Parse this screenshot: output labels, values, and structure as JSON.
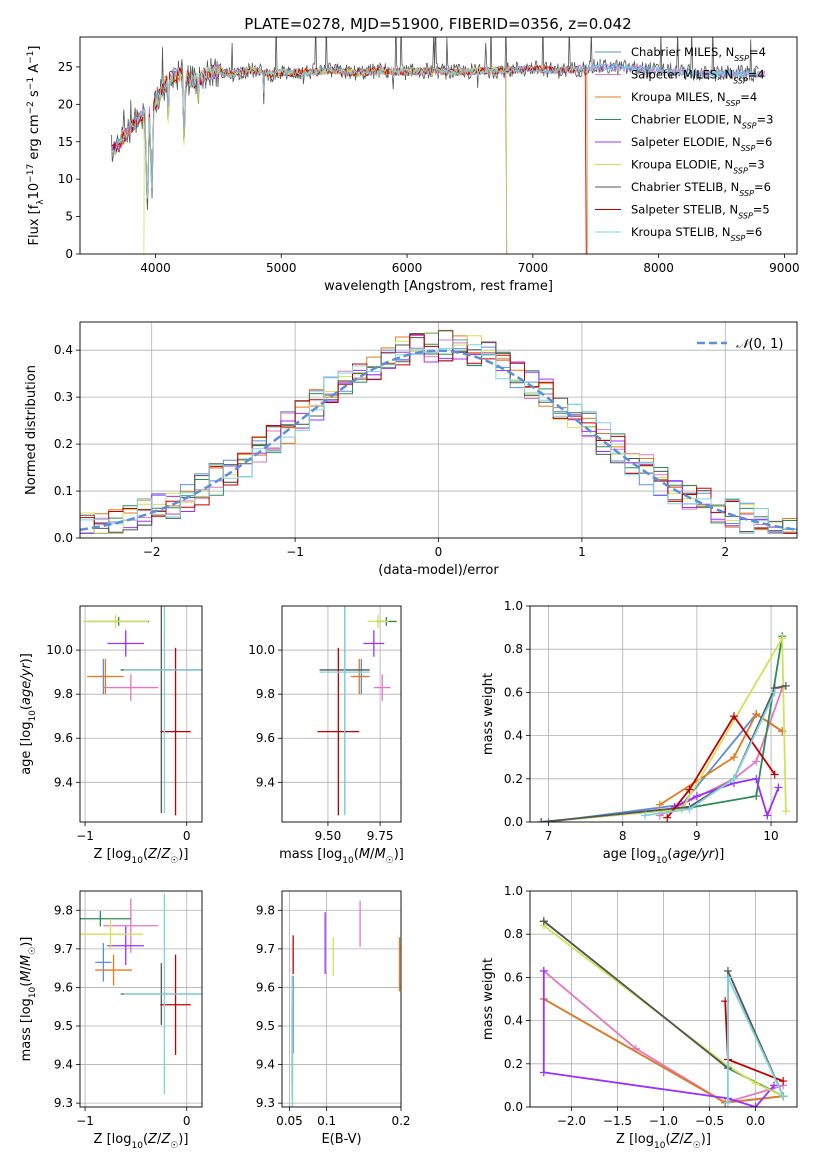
{
  "title": "PLATE=0278, MJD=51900, FIBERID=0356, z=0.042",
  "colors": [
    "#5b8fd9",
    "#e377c2",
    "#e07b20",
    "#2e8b57",
    "#9b30ff",
    "#d4e157",
    "#555555",
    "#c00000",
    "#7fd3e0"
  ],
  "legend_entries": [
    "Chabrier MILES, N_SSP=4",
    "Salpeter MILES, N_SSP=4",
    "Kroupa MILES, N_SSP=4",
    "Chabrier ELODIE, N_SSP=3",
    "Salpeter ELODIE, N_SSP=6",
    "Kroupa ELODIE, N_SSP=3",
    "Chabrier STELIB, N_SSP=6",
    "Salpeter STELIB, N_SSP=5",
    "Kroupa STELIB, N_SSP=6"
  ],
  "chart_data": [
    {
      "id": "spectrum",
      "type": "line",
      "xlabel": "wavelength [Angstrom, rest frame]",
      "ylabel": "Flux [f_λ 10^-17 erg cm^-2 s^-1 A^-1]",
      "xlim": [
        3400,
        9100
      ],
      "ylim": [
        0,
        29
      ],
      "xticks": [
        4000,
        5000,
        6000,
        7000,
        8000,
        9000
      ],
      "yticks": [
        0,
        5,
        10,
        15,
        20,
        25
      ],
      "grid": false,
      "legend": "top-right",
      "spectrum_shape": {
        "x": [
          3650,
          3700,
          3800,
          3900,
          3950,
          4000,
          4050,
          4100,
          4200,
          4300,
          4400,
          4500,
          4600,
          4700,
          4800,
          4900,
          5000,
          5200,
          5400,
          5600,
          5800,
          6000,
          6200,
          6400,
          6600,
          6800,
          7000,
          7200,
          7400,
          7500,
          7600,
          7800,
          8000,
          8200,
          8400,
          8600,
          8800
        ],
        "y": [
          14,
          14.5,
          17,
          18.5,
          19,
          20,
          22,
          23.5,
          24,
          23,
          24,
          24.5,
          24,
          24.5,
          24.5,
          24,
          24.2,
          24.3,
          24.5,
          24.2,
          24.5,
          24.3,
          24.5,
          24.3,
          24.5,
          24.6,
          24.8,
          24.5,
          24.8,
          25,
          25,
          24.8,
          24.5,
          24.3,
          24,
          24.2,
          24
        ]
      },
      "dips": [
        {
          "x": 3935,
          "y": 4.5
        },
        {
          "x": 3970,
          "y": 6
        },
        {
          "x": 4101,
          "y": 16
        },
        {
          "x": 4227,
          "y": 13
        },
        {
          "x": 4340,
          "y": 18
        },
        {
          "x": 4861,
          "y": 20
        },
        {
          "x": 5175,
          "y": 22
        },
        {
          "x": 5890,
          "y": 22
        },
        {
          "x": 6563,
          "y": 21.5
        }
      ],
      "series_ends": [
        {
          "series": 5,
          "x_start": 3910,
          "drop_at": null
        },
        {
          "series": 5,
          "x_end": 6790,
          "note": ""
        },
        {
          "series": 2,
          "x_end": 7430
        }
      ]
    },
    {
      "id": "residuals",
      "type": "histogram",
      "xlabel": "(data-model)/error",
      "ylabel": "Normed distribution",
      "xlim": [
        -2.5,
        2.5
      ],
      "ylim": [
        0,
        0.46
      ],
      "xticks": [
        -2,
        -1,
        0,
        1,
        2
      ],
      "yticks": [
        0.0,
        0.1,
        0.2,
        0.3,
        0.4
      ],
      "grid": true,
      "legend": "top-right",
      "legend_label": "N(0,1)",
      "bin_width": 0.1
    },
    {
      "id": "age_vs_Z",
      "type": "errorbar",
      "xlabel": "Z [log10(Z/Z☉)]",
      "ylabel": "age [log10(age/yr)]",
      "xlim": [
        -1.05,
        0.15
      ],
      "ylim": [
        9.22,
        10.2
      ],
      "xticks": [
        -1,
        0
      ],
      "yticks": [
        9.4,
        9.6,
        9.8,
        10.0
      ],
      "points": [
        {
          "c": 0,
          "x": -0.82,
          "y": 9.88,
          "ex": 0.08,
          "ey": 0.08
        },
        {
          "c": 1,
          "x": -0.55,
          "y": 9.83,
          "ex": 0.27,
          "ey": 0.06
        },
        {
          "c": 2,
          "x": -0.8,
          "y": 9.88,
          "ex": 0.18,
          "ey": 0.08
        },
        {
          "c": 3,
          "x": -0.67,
          "y": 10.13,
          "ex": 0.3,
          "ey": 0.02
        },
        {
          "c": 4,
          "x": -0.6,
          "y": 10.03,
          "ex": 0.18,
          "ey": 0.06
        },
        {
          "c": 5,
          "x": -0.7,
          "y": 10.13,
          "ex": 0.32,
          "ey": 0.03
        },
        {
          "c": 6,
          "x": -0.25,
          "y": 9.91,
          "ex": 0.4,
          "ey": 0.65
        },
        {
          "c": 7,
          "x": -0.11,
          "y": 9.63,
          "ex": 0.15,
          "ey": 0.38
        },
        {
          "c": 8,
          "x": -0.22,
          "y": 9.91,
          "ex": 0.4,
          "ey": 0.65
        }
      ]
    },
    {
      "id": "age_vs_mass",
      "type": "errorbar",
      "xlabel": "mass [log10(M/M☉)]",
      "ylabel": "",
      "xlim": [
        9.28,
        9.85
      ],
      "ylim": [
        9.22,
        10.2
      ],
      "xticks": [
        9.5,
        9.75
      ],
      "xticklabels": [
        "9.50",
        "9.75"
      ],
      "yticks": [
        9.4,
        9.6,
        9.8,
        10.0
      ],
      "points": [
        {
          "c": 0,
          "x": 9.66,
          "y": 9.88,
          "ex": 0.04,
          "ey": 0.08
        },
        {
          "c": 1,
          "x": 9.76,
          "y": 9.83,
          "ex": 0.04,
          "ey": 0.06
        },
        {
          "c": 2,
          "x": 9.65,
          "y": 9.88,
          "ex": 0.04,
          "ey": 0.08
        },
        {
          "c": 3,
          "x": 9.78,
          "y": 10.13,
          "ex": 0.05,
          "ey": 0.02
        },
        {
          "c": 4,
          "x": 9.72,
          "y": 10.03,
          "ex": 0.05,
          "ey": 0.06
        },
        {
          "c": 5,
          "x": 9.74,
          "y": 10.13,
          "ex": 0.05,
          "ey": 0.03
        },
        {
          "c": 6,
          "x": 9.58,
          "y": 9.91,
          "ex": 0.12,
          "ey": 0.65
        },
        {
          "c": 7,
          "x": 9.55,
          "y": 9.63,
          "ex": 0.1,
          "ey": 0.38
        },
        {
          "c": 8,
          "x": 9.58,
          "y": 9.9,
          "ex": 0.12,
          "ey": 0.65
        }
      ]
    },
    {
      "id": "weight_vs_age",
      "type": "line",
      "xlabel": "age [log10(age/yr)]",
      "ylabel": "mass weight",
      "xlim": [
        6.75,
        10.35
      ],
      "ylim": [
        0,
        1.0
      ],
      "xticks": [
        7,
        8,
        9,
        10
      ],
      "yticks": [
        0.0,
        0.2,
        0.4,
        0.6,
        0.8,
        1.0
      ],
      "grid": true,
      "series": [
        {
          "c": 0,
          "x": [
            7.0,
            8.8,
            9.8,
            10.15
          ],
          "y": [
            0.0,
            0.08,
            0.5,
            0.42
          ]
        },
        {
          "c": 1,
          "x": [
            8.5,
            9.5,
            9.8,
            10.15
          ],
          "y": [
            0.03,
            0.2,
            0.28,
            0.62
          ]
        },
        {
          "c": 2,
          "x": [
            8.5,
            9.5,
            9.8,
            10.15
          ],
          "y": [
            0.08,
            0.3,
            0.5,
            0.42
          ]
        },
        {
          "c": 3,
          "x": [
            6.9,
            8.8,
            9.8,
            10.15
          ],
          "y": [
            0.0,
            0.06,
            0.12,
            0.86
          ]
        },
        {
          "c": 4,
          "x": [
            8.7,
            9.0,
            9.5,
            9.8,
            9.95,
            10.1
          ],
          "y": [
            0.07,
            0.12,
            0.18,
            0.2,
            0.03,
            0.16
          ]
        },
        {
          "c": 5,
          "x": [
            6.9,
            8.8,
            10.15,
            10.2
          ],
          "y": [
            0.0,
            0.06,
            0.85,
            0.05
          ]
        },
        {
          "c": 6,
          "x": [
            6.9,
            8.9,
            9.5,
            10.05,
            10.2
          ],
          "y": [
            0.0,
            0.07,
            0.2,
            0.62,
            0.63
          ]
        },
        {
          "c": 7,
          "x": [
            8.6,
            8.9,
            9.5,
            10.05
          ],
          "y": [
            0.02,
            0.15,
            0.49,
            0.22
          ]
        },
        {
          "c": 8,
          "x": [
            8.3,
            8.9,
            9.5,
            10.05
          ],
          "y": [
            0.03,
            0.06,
            0.2,
            0.6
          ]
        }
      ]
    },
    {
      "id": "mass_vs_Z",
      "type": "errorbar",
      "xlabel": "Z [log10(Z/Z☉)]",
      "ylabel": "mass [log10(M/M☉)]",
      "xlim": [
        -1.05,
        0.15
      ],
      "ylim": [
        9.29,
        9.85
      ],
      "xticks": [
        -1,
        0
      ],
      "yticks": [
        9.3,
        9.4,
        9.5,
        9.6,
        9.7,
        9.8
      ],
      "points": [
        {
          "c": 0,
          "x": -0.82,
          "y": 9.665,
          "ex": 0.08,
          "ey": 0.05
        },
        {
          "c": 1,
          "x": -0.55,
          "y": 9.76,
          "ex": 0.27,
          "ey": 0.07
        },
        {
          "c": 2,
          "x": -0.72,
          "y": 9.645,
          "ex": 0.18,
          "ey": 0.04
        },
        {
          "c": 3,
          "x": -0.85,
          "y": 9.778,
          "ex": 0.3,
          "ey": 0.02
        },
        {
          "c": 4,
          "x": -0.6,
          "y": 9.708,
          "ex": 0.18,
          "ey": 0.05
        },
        {
          "c": 5,
          "x": -0.75,
          "y": 9.738,
          "ex": 0.32,
          "ey": 0.04
        },
        {
          "c": 6,
          "x": -0.25,
          "y": 9.583,
          "ex": 0.4,
          "ey": 0.08
        },
        {
          "c": 7,
          "x": -0.11,
          "y": 9.555,
          "ex": 0.15,
          "ey": 0.13
        },
        {
          "c": 8,
          "x": -0.22,
          "y": 9.583,
          "ex": 0.4,
          "ey": 0.26
        }
      ]
    },
    {
      "id": "mass_vs_ebv",
      "type": "errorbar",
      "xlabel": "E(B-V)",
      "ylabel": "",
      "xlim": [
        0.04,
        0.2
      ],
      "ylim": [
        9.29,
        9.85
      ],
      "xticks": [
        0.05,
        0.1,
        0.2
      ],
      "yticks": [
        9.3,
        9.4,
        9.5,
        9.6,
        9.7,
        9.8
      ],
      "points": [
        {
          "c": 0,
          "x": 0.055,
          "y": 9.53,
          "ey": 0.1
        },
        {
          "c": 1,
          "x": 0.145,
          "y": 9.765,
          "ey": 0.06
        },
        {
          "c": 2,
          "x": 0.198,
          "y": 9.66,
          "ey": 0.07
        },
        {
          "c": 3,
          "x": 0.054,
          "y": 9.45,
          "ey": 0.1
        },
        {
          "c": 4,
          "x": 0.098,
          "y": 9.715,
          "ey": 0.08
        },
        {
          "c": 5,
          "x": 0.109,
          "y": 9.68,
          "ey": 0.05
        },
        {
          "c": 6,
          "x": 0.054,
          "y": 9.47,
          "ey": 0.16
        },
        {
          "c": 7,
          "x": 0.055,
          "y": 9.685,
          "ey": 0.05
        },
        {
          "c": 8,
          "x": 0.054,
          "y": 9.43,
          "ey": 0.2
        }
      ]
    },
    {
      "id": "weight_vs_Z",
      "type": "line",
      "xlabel": "Z [log10(Z/Z☉)]",
      "ylabel": "mass weight",
      "xlim": [
        -2.45,
        0.45
      ],
      "ylim": [
        0,
        1.0
      ],
      "xticks": [
        -2.0,
        -1.5,
        -1.0,
        -0.5,
        0.0
      ],
      "xticklabels": [
        "−2.0",
        "−1.5",
        "−1.0",
        "−0.5",
        "0.0"
      ],
      "yticks": [
        0.0,
        0.2,
        0.4,
        0.6,
        0.8,
        1.0
      ],
      "grid": true,
      "series": [
        {
          "c": 0,
          "x": [
            -2.3,
            -0.33,
            0.3
          ],
          "y": [
            0.5,
            0.02,
            0.05
          ]
        },
        {
          "c": 1,
          "x": [
            -2.3,
            -1.3,
            -0.33,
            0.3
          ],
          "y": [
            0.63,
            0.27,
            0.02,
            0.1
          ]
        },
        {
          "c": 2,
          "x": [
            -2.3,
            -0.33,
            0.3
          ],
          "y": [
            0.5,
            0.02,
            0.05
          ]
        },
        {
          "c": 3,
          "x": [
            -2.3,
            -0.3,
            0.3
          ],
          "y": [
            0.86,
            0.18,
            0.05
          ]
        },
        {
          "c": 4,
          "x": [
            -2.3,
            -2.3,
            -0.3,
            0.0,
            0.2
          ],
          "y": [
            0.63,
            0.16,
            0.04,
            0.0,
            0.1
          ]
        },
        {
          "c": 5,
          "x": [
            -2.3,
            -0.3,
            0.0,
            0.3
          ],
          "y": [
            0.84,
            0.19,
            0.11,
            0.05
          ]
        },
        {
          "c": 6,
          "x": [
            -2.3,
            -0.3,
            -0.3,
            0.3
          ],
          "y": [
            0.86,
            0.18,
            0.63,
            0.05
          ]
        },
        {
          "c": 7,
          "x": [
            -0.33,
            -0.3,
            0.3
          ],
          "y": [
            0.49,
            0.22,
            0.12
          ]
        },
        {
          "c": 8,
          "x": [
            -0.3,
            -0.3,
            0.3
          ],
          "y": [
            0.02,
            0.6,
            0.05
          ]
        }
      ]
    }
  ]
}
